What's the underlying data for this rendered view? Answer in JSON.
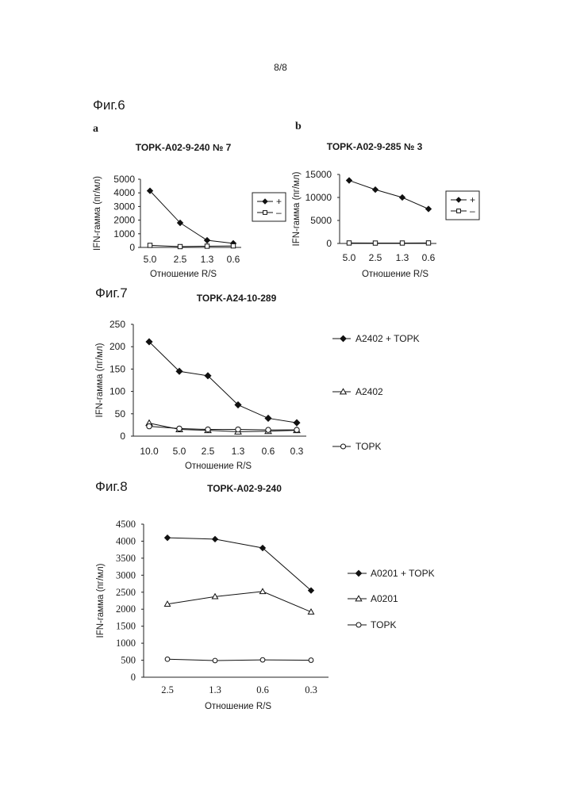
{
  "page": {
    "number": "8/8"
  },
  "figures": {
    "fig6": {
      "label": "Фиг.6",
      "sub_a": "a",
      "sub_b": "b"
    },
    "fig7": {
      "label": "Фиг.7"
    },
    "fig8": {
      "label": "Фиг.8"
    }
  },
  "chart_data": [
    {
      "id": "fig6a",
      "type": "line",
      "title": "TOPK-A02-9-240 № 7",
      "xlabel": "Отношение R/S",
      "ylabel": "IFN-гамма (пг/мл)",
      "categories": [
        "5.0",
        "2.5",
        "1.3",
        "0.6"
      ],
      "ylim": [
        0,
        5000
      ],
      "yticks": [
        0,
        1000,
        2000,
        3000,
        4000,
        5000
      ],
      "legend": "boxed-right",
      "grid": false,
      "series": [
        {
          "name": "+",
          "marker": "diamond-filled",
          "values": [
            4150,
            1800,
            520,
            300
          ]
        },
        {
          "name": "–",
          "marker": "square-open",
          "values": [
            150,
            60,
            90,
            110
          ]
        }
      ]
    },
    {
      "id": "fig6b",
      "type": "line",
      "title": "TOPK-A02-9-285 № 3",
      "xlabel": "Отношение R/S",
      "ylabel": "IFN-гамма (пг/мл)",
      "categories": [
        "5.0",
        "2.5",
        "1.3",
        "0.6"
      ],
      "ylim": [
        0,
        15000
      ],
      "yticks": [
        0,
        5000,
        10000,
        15000
      ],
      "legend": "boxed-right",
      "grid": false,
      "series": [
        {
          "name": "+",
          "marker": "diamond-filled",
          "values": [
            13700,
            11700,
            10000,
            7500
          ]
        },
        {
          "name": "–",
          "marker": "square-open",
          "values": [
            100,
            80,
            90,
            110
          ]
        }
      ]
    },
    {
      "id": "fig7",
      "type": "line",
      "title": "TOPK-A24-10-289",
      "xlabel": "Отношение R/S",
      "ylabel": "IFN-гамма (пг/мл)",
      "categories": [
        "10.0",
        "5.0",
        "2.5",
        "1.3",
        "0.6",
        "0.3"
      ],
      "ylim": [
        0,
        250
      ],
      "yticks": [
        0,
        50,
        100,
        150,
        200,
        250
      ],
      "legend": "right",
      "grid": false,
      "series": [
        {
          "name": "A2402 + TOPK",
          "marker": "diamond-filled",
          "values": [
            211,
            145,
            135,
            70,
            40,
            30
          ]
        },
        {
          "name": "A2402",
          "marker": "triangle-open",
          "values": [
            29,
            15,
            13,
            10,
            11,
            13
          ]
        },
        {
          "name": "TOPK",
          "marker": "circle-open",
          "values": [
            22,
            17,
            15,
            15,
            14,
            14
          ]
        }
      ]
    },
    {
      "id": "fig8",
      "type": "line",
      "title": "TOPK-A02-9-240",
      "xlabel": "Отношение R/S",
      "ylabel": "IFN-гамма (пг/мл)",
      "categories": [
        "2.5",
        "1.3",
        "0.6",
        "0.3"
      ],
      "ylim": [
        0,
        4500
      ],
      "yticks": [
        0,
        500,
        1000,
        1500,
        2000,
        2500,
        3000,
        3500,
        4000,
        4500
      ],
      "legend": "right",
      "grid": false,
      "series": [
        {
          "name": "A0201 + TOPK",
          "marker": "diamond-filled",
          "values": [
            4100,
            4060,
            3800,
            2550
          ]
        },
        {
          "name": "A0201",
          "marker": "triangle-open",
          "values": [
            2150,
            2370,
            2520,
            1920
          ]
        },
        {
          "name": "TOPK",
          "marker": "circle-open",
          "values": [
            530,
            490,
            510,
            500
          ]
        }
      ]
    }
  ]
}
